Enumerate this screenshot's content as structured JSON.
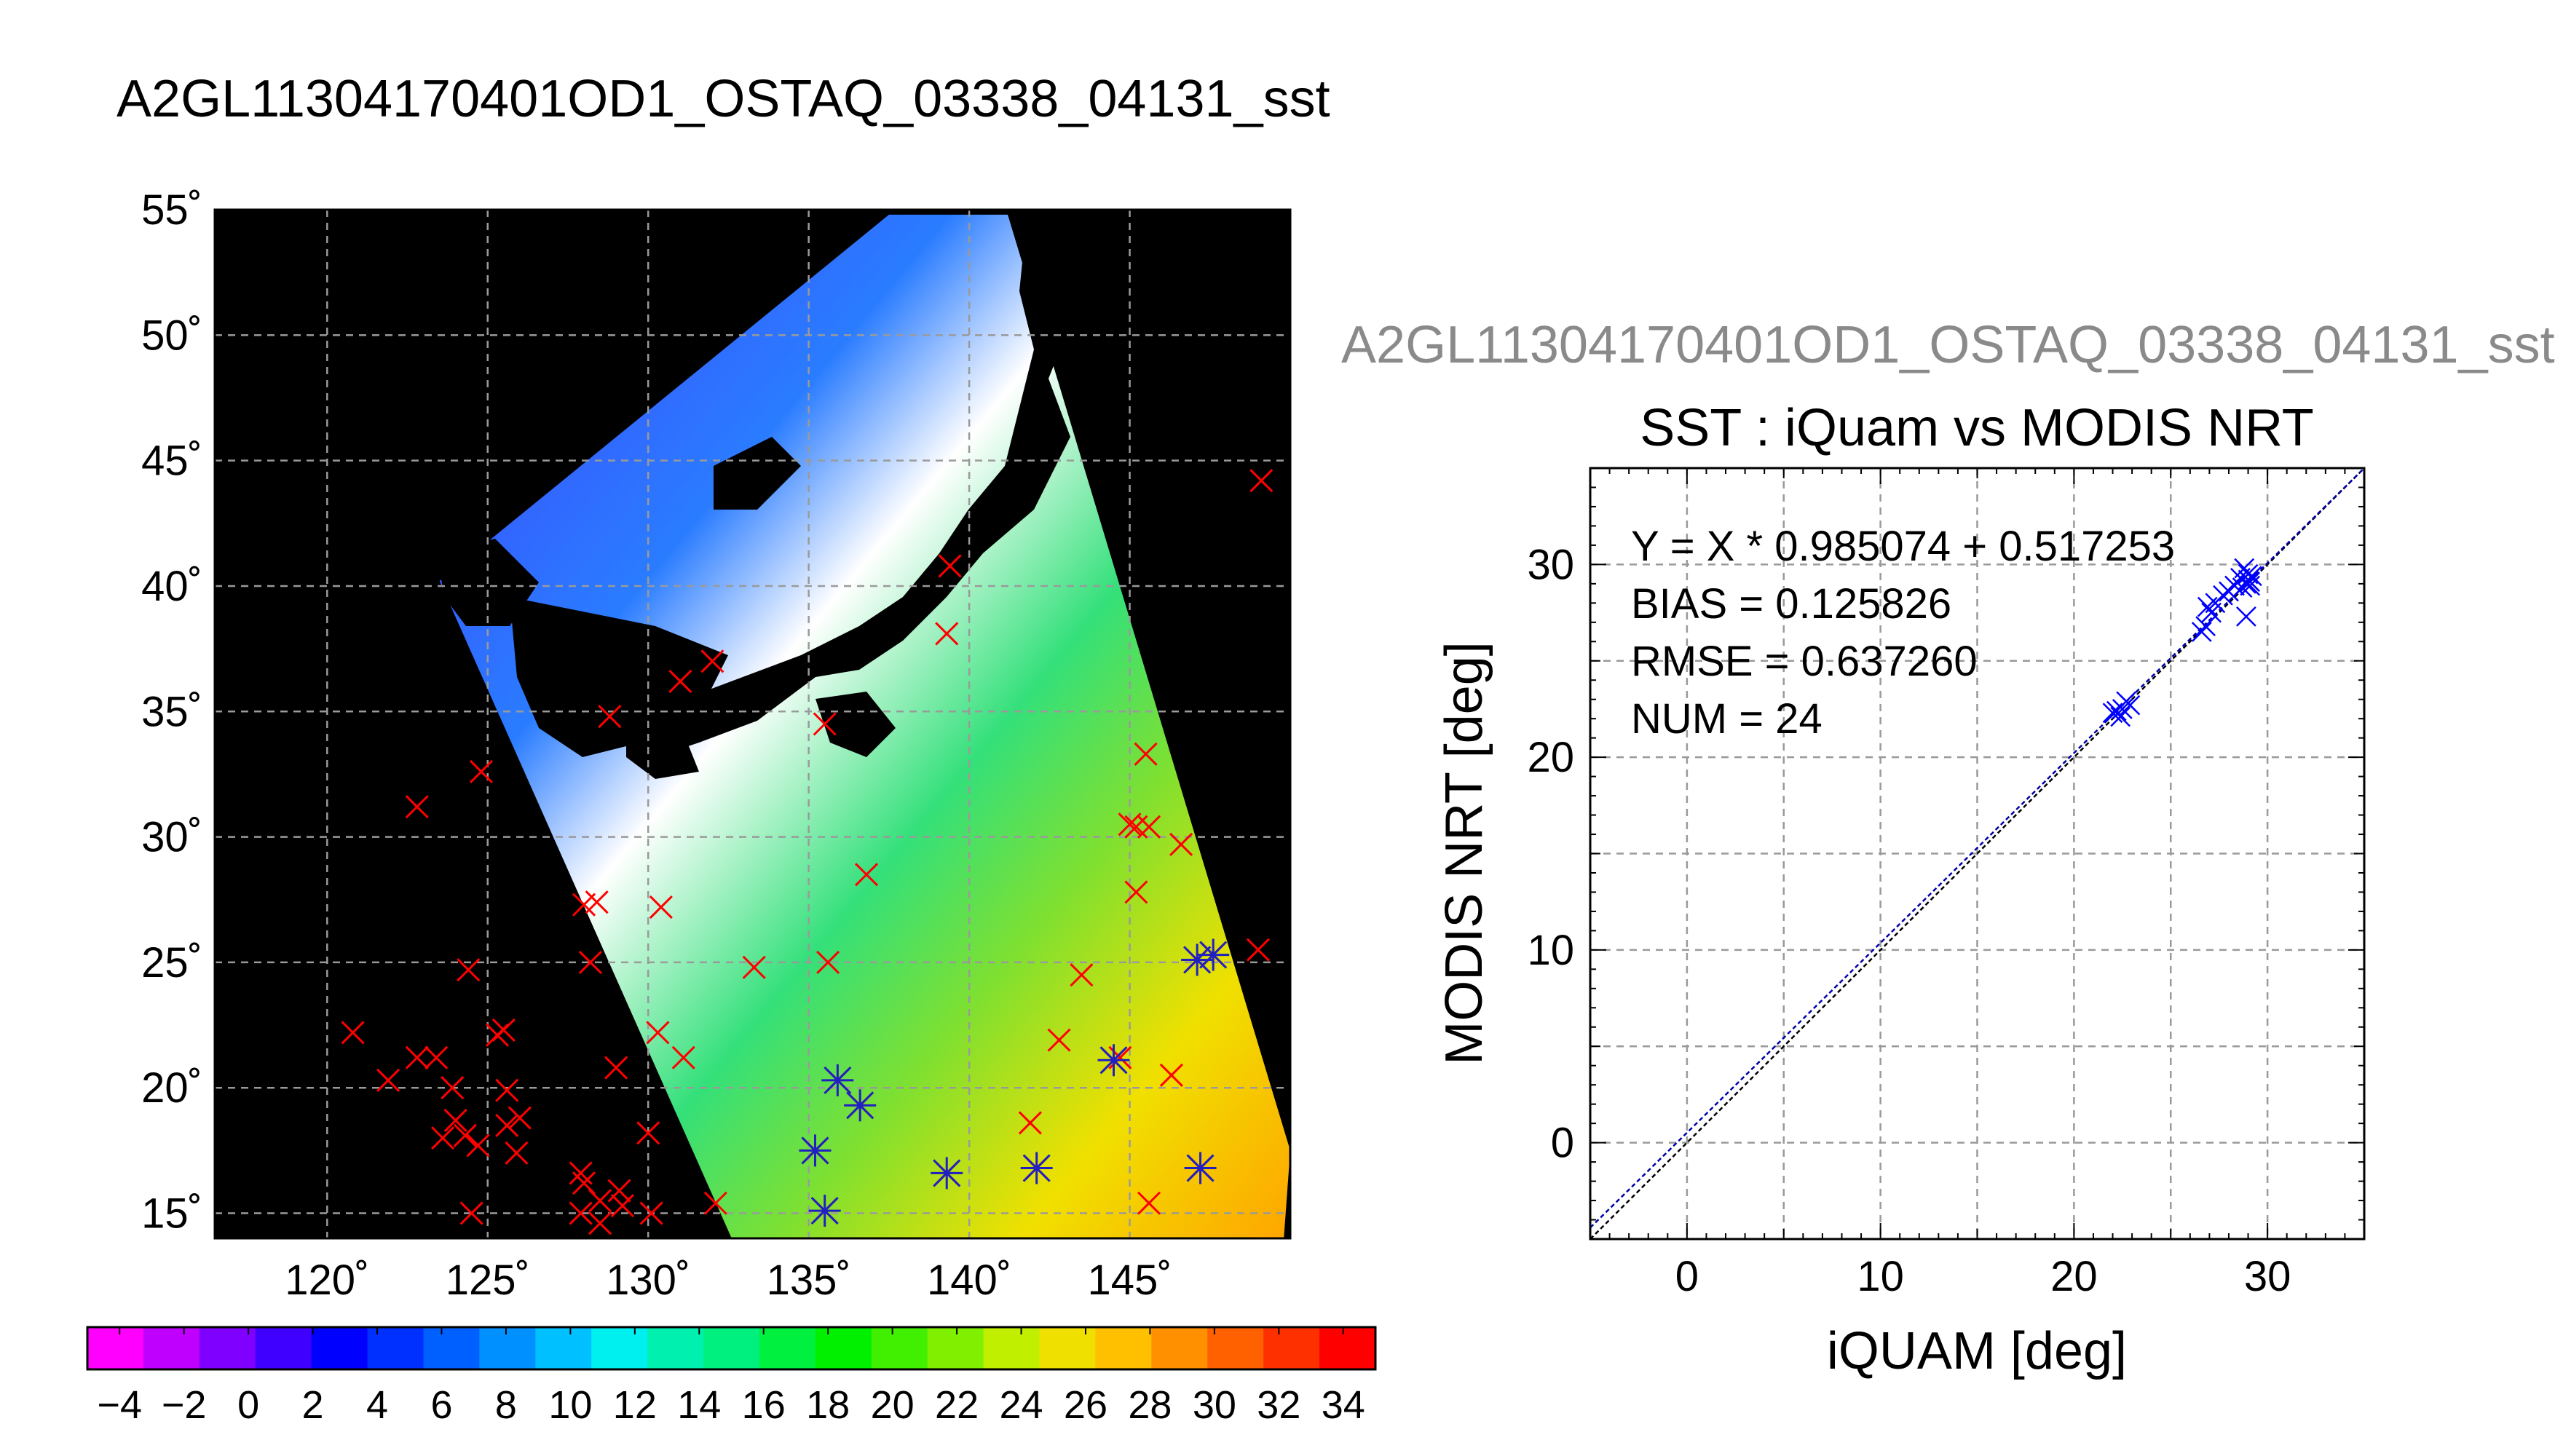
{
  "page": {
    "title": "A2GL11304170401OD1_OSTAQ_03338_04131_sst",
    "right_subtitle": "A2GL11304170401OD1_OSTAQ_03338_04131_sst"
  },
  "colors": {
    "background": "#ffffff",
    "land": "#000000",
    "map_marker": "#ff0000",
    "matched_marker": "#2020c0",
    "scatter_marker": "#0000ff",
    "fit_line": "#0000aa"
  },
  "chart_data": [
    {
      "type": "map",
      "title": "A2GL11304170401OD1_OSTAQ_03338_04131_sst",
      "x_ticks": [
        "120˚",
        "125˚",
        "130˚",
        "135˚",
        "140˚",
        "145˚"
      ],
      "x_tick_values": [
        120,
        125,
        130,
        135,
        140,
        145
      ],
      "y_ticks": [
        "55˚",
        "50˚",
        "45˚",
        "40˚",
        "35˚",
        "30˚",
        "25˚",
        "20˚",
        "15˚"
      ],
      "y_tick_values": [
        55,
        50,
        45,
        40,
        35,
        30,
        25,
        20,
        15
      ],
      "xlim": [
        116.5,
        150
      ],
      "ylim": [
        14,
        55
      ],
      "grid": true,
      "swath_corners_lon_lat": [
        [
          123.5,
          40.2
        ],
        [
          137.5,
          54.8
        ],
        [
          141.2,
          54.8
        ],
        [
          150,
          17.5
        ],
        [
          149.8,
          14
        ],
        [
          132.6,
          14
        ]
      ],
      "markers_lon_lat": [
        [
          149.1,
          44.2
        ],
        [
          139.4,
          40.8
        ],
        [
          139.3,
          38.1
        ],
        [
          132.0,
          37.0
        ],
        [
          131.0,
          36.2
        ],
        [
          135.5,
          34.5
        ],
        [
          128.8,
          34.8
        ],
        [
          145.5,
          33.3
        ],
        [
          124.8,
          32.6
        ],
        [
          122.8,
          31.2
        ],
        [
          145.0,
          30.5
        ],
        [
          145.2,
          30.4
        ],
        [
          145.6,
          30.4
        ],
        [
          146.6,
          29.7
        ],
        [
          136.8,
          28.5
        ],
        [
          145.2,
          27.8
        ],
        [
          128.0,
          27.3
        ],
        [
          128.4,
          27.4
        ],
        [
          130.4,
          27.2
        ],
        [
          128.2,
          25.0
        ],
        [
          133.3,
          24.8
        ],
        [
          135.6,
          25.0
        ],
        [
          143.5,
          24.5
        ],
        [
          124.4,
          24.7
        ],
        [
          147.1,
          25.1
        ],
        [
          147.6,
          25.3
        ],
        [
          149.0,
          25.5
        ],
        [
          120.8,
          22.2
        ],
        [
          125.5,
          22.3
        ],
        [
          125.3,
          22.1
        ],
        [
          130.3,
          22.2
        ],
        [
          131.1,
          21.2
        ],
        [
          122.8,
          21.2
        ],
        [
          123.4,
          21.2
        ],
        [
          142.8,
          21.9
        ],
        [
          144.5,
          21.1
        ],
        [
          144.7,
          21.2
        ],
        [
          146.3,
          20.5
        ],
        [
          121.9,
          20.3
        ],
        [
          123.9,
          20.0
        ],
        [
          129.0,
          20.8
        ],
        [
          125.6,
          19.9
        ],
        [
          124.0,
          18.7
        ],
        [
          124.3,
          18.1
        ],
        [
          125.6,
          18.5
        ],
        [
          126.0,
          18.8
        ],
        [
          123.6,
          18.0
        ],
        [
          124.7,
          17.7
        ],
        [
          125.9,
          17.4
        ],
        [
          130.0,
          18.2
        ],
        [
          136.6,
          19.3
        ],
        [
          141.9,
          18.6
        ],
        [
          127.9,
          16.6
        ],
        [
          128.0,
          16.2
        ],
        [
          128.5,
          15.5
        ],
        [
          129.1,
          15.9
        ],
        [
          129.2,
          15.3
        ],
        [
          127.9,
          15.0
        ],
        [
          128.5,
          14.6
        ],
        [
          130.1,
          15.0
        ],
        [
          132.1,
          15.4
        ],
        [
          124.5,
          15.0
        ],
        [
          147.2,
          16.8
        ],
        [
          145.6,
          15.4
        ],
        [
          135.2,
          17.5
        ],
        [
          139.3,
          16.6
        ],
        [
          142.1,
          16.8
        ],
        [
          135.9,
          20.3
        ],
        [
          135.5,
          15.1
        ]
      ],
      "matched_markers_lon_lat": [
        [
          135.9,
          20.3
        ],
        [
          136.6,
          19.3
        ],
        [
          135.2,
          17.5
        ],
        [
          135.5,
          15.1
        ],
        [
          139.3,
          16.6
        ],
        [
          142.1,
          16.8
        ],
        [
          144.5,
          21.1
        ],
        [
          147.1,
          25.1
        ],
        [
          147.6,
          25.3
        ],
        [
          147.2,
          16.8
        ]
      ],
      "colorbar": {
        "labels": [
          "−4",
          "−2",
          "0",
          "2",
          "4",
          "6",
          "8",
          "10",
          "12",
          "14",
          "16",
          "18",
          "20",
          "22",
          "24",
          "26",
          "28",
          "30",
          "32",
          "34"
        ],
        "values": [
          -4,
          -2,
          0,
          2,
          4,
          6,
          8,
          10,
          12,
          14,
          16,
          18,
          20,
          22,
          24,
          26,
          28,
          30,
          32,
          34
        ],
        "range": [
          -5,
          35
        ]
      }
    },
    {
      "type": "scatter",
      "title": "SST : iQuam vs MODIS NRT",
      "xlabel": "iQUAM [deg]",
      "ylabel": "MODIS NRT [deg]",
      "xlim": [
        -5,
        35
      ],
      "ylim": [
        -5,
        35
      ],
      "x_ticks": [
        0,
        10,
        20,
        30
      ],
      "y_ticks": [
        0,
        10,
        20,
        30
      ],
      "grid": true,
      "annotations": [
        "Y = X * 0.985074 + 0.517253",
        "BIAS = 0.125826",
        "RMSE = 0.637260",
        "NUM = 24"
      ],
      "fit": {
        "slope": 0.985074,
        "intercept": 0.517253
      },
      "points": [
        [
          22.2,
          22.4
        ],
        [
          22.4,
          22.1
        ],
        [
          22.7,
          22.9
        ],
        [
          22.9,
          22.7
        ],
        [
          22.5,
          22.5
        ],
        [
          26.6,
          26.5
        ],
        [
          26.8,
          26.8
        ],
        [
          26.9,
          27.8
        ],
        [
          27.1,
          27.5
        ],
        [
          27.3,
          28.0
        ],
        [
          27.7,
          28.4
        ],
        [
          28.0,
          28.6
        ],
        [
          28.3,
          28.9
        ],
        [
          28.6,
          29.3
        ],
        [
          28.8,
          29.8
        ],
        [
          28.9,
          29.0
        ],
        [
          29.0,
          29.2
        ],
        [
          29.1,
          28.9
        ],
        [
          29.2,
          29.4
        ],
        [
          28.9,
          27.3
        ],
        [
          29.0,
          29.5
        ],
        [
          28.7,
          28.8
        ],
        [
          29.1,
          29.1
        ],
        [
          22.0,
          22.3
        ]
      ]
    }
  ]
}
